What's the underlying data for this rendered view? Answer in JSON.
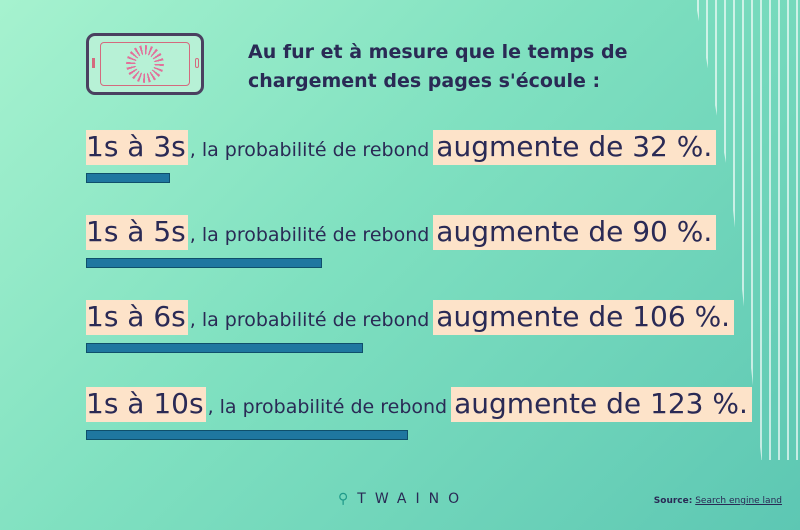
{
  "header": {
    "title": "Au fur et à mesure que le temps de chargement des pages s'écoule :"
  },
  "chart_data": {
    "type": "bar",
    "orientation": "horizontal",
    "categories": [
      "1s à 3s",
      "1s à 5s",
      "1s à 6s",
      "1s à 10s"
    ],
    "values": [
      32,
      90,
      106,
      123
    ],
    "unit": "%",
    "row_texts": [
      {
        "range": "1s à 3s",
        "comma": ",",
        "middle": "la probabilité de rebond",
        "tail": "augmente de 32 %."
      },
      {
        "range": "1s à 5s",
        "comma": ",",
        "middle": "la probabilité de rebond",
        "tail": "augmente de 90 %."
      },
      {
        "range": "1s à 6s",
        "comma": ",",
        "middle": "la probabilité de rebond",
        "tail": "augmente de 106 %."
      },
      {
        "range": "1s à 10s",
        "comma": ",",
        "middle": "la probabilité de rebond",
        "tail": "augmente de 123 %."
      }
    ],
    "bar_color": "#1f77a0",
    "highlight_color": "#fde3c9"
  },
  "footer": {
    "brand": "TWAINO",
    "source_label": "Source:",
    "source_value": "Search engine land"
  },
  "icons": {
    "illustration": "phone-loading-icon"
  }
}
